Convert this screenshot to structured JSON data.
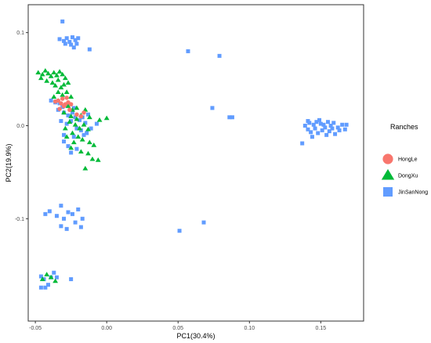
{
  "chart_data": {
    "type": "scatter",
    "xlabel": "PC1(30.4%)",
    "ylabel": "PC2(19.9%)",
    "xlim": [
      -0.055,
      0.18
    ],
    "ylim": [
      -0.21,
      0.13
    ],
    "x_ticks": [
      -0.05,
      0.0,
      0.05,
      0.1,
      0.15
    ],
    "x_tick_labels": [
      "-0.05",
      "0.00",
      "0.05",
      "0.10",
      "0.15"
    ],
    "y_ticks": [
      0.1,
      0.0,
      -0.1
    ],
    "y_tick_labels": [
      "0.1",
      "0.0",
      "-0.1"
    ],
    "grid": false,
    "legend": {
      "title": "Ranches",
      "position": "right"
    },
    "series": [
      {
        "name": "HongLe",
        "marker": "circle",
        "color": "#F8766D",
        "points": [
          [
            -0.036,
            0.026
          ],
          [
            -0.032,
            0.024
          ],
          [
            -0.029,
            0.023
          ],
          [
            -0.027,
            0.025
          ],
          [
            -0.031,
            0.029
          ],
          [
            -0.034,
            0.027
          ],
          [
            -0.028,
            0.03
          ],
          [
            -0.025,
            0.023
          ],
          [
            -0.03,
            0.021
          ],
          [
            -0.021,
            0.012
          ],
          [
            -0.018,
            0.01
          ],
          [
            -0.016,
            0.014
          ],
          [
            -0.026,
            0.017
          ],
          [
            -0.033,
            0.018
          ]
        ]
      },
      {
        "name": "DongXu",
        "marker": "triangle",
        "color": "#00BA38",
        "points": [
          [
            -0.048,
            0.057
          ],
          [
            -0.045,
            0.055
          ],
          [
            -0.043,
            0.059
          ],
          [
            -0.041,
            0.056
          ],
          [
            -0.046,
            0.051
          ],
          [
            -0.039,
            0.053
          ],
          [
            -0.037,
            0.057
          ],
          [
            -0.035,
            0.054
          ],
          [
            -0.033,
            0.058
          ],
          [
            -0.031,
            0.055
          ],
          [
            -0.042,
            0.048
          ],
          [
            -0.038,
            0.046
          ],
          [
            -0.034,
            0.049
          ],
          [
            -0.029,
            0.051
          ],
          [
            -0.036,
            0.043
          ],
          [
            -0.032,
            0.041
          ],
          [
            -0.03,
            0.044
          ],
          [
            -0.027,
            0.046
          ],
          [
            -0.034,
            0.036
          ],
          [
            -0.031,
            0.033
          ],
          [
            -0.028,
            0.036
          ],
          [
            -0.025,
            0.031
          ],
          [
            -0.037,
            0.031
          ],
          [
            -0.027,
            0.021
          ],
          [
            -0.024,
            0.017
          ],
          [
            -0.021,
            0.019
          ],
          [
            -0.03,
            0.014
          ],
          [
            -0.025,
            0.01
          ],
          [
            -0.021,
            0.007
          ],
          [
            -0.018,
            0.011
          ],
          [
            -0.015,
            0.017
          ],
          [
            -0.012,
            0.009
          ],
          [
            -0.026,
            0.004
          ],
          [
            -0.022,
            0.001
          ],
          [
            -0.019,
            -0.003
          ],
          [
            -0.016,
            0.001
          ],
          [
            -0.013,
            -0.004
          ],
          [
            -0.029,
            -0.003
          ],
          [
            -0.024,
            -0.008
          ],
          [
            -0.02,
            -0.012
          ],
          [
            -0.017,
            -0.015
          ],
          [
            -0.012,
            -0.018
          ],
          [
            -0.009,
            -0.021
          ],
          [
            -0.025,
            -0.024
          ],
          [
            -0.018,
            -0.028
          ],
          [
            -0.013,
            -0.03
          ],
          [
            -0.01,
            -0.036
          ],
          [
            -0.015,
            -0.046
          ],
          [
            -0.006,
            -0.037
          ],
          [
            0.0,
            0.008
          ],
          [
            -0.005,
            0.006
          ],
          [
            -0.028,
            -0.012
          ],
          [
            -0.023,
            -0.018
          ],
          [
            -0.045,
            -0.165
          ],
          [
            -0.042,
            -0.16
          ],
          [
            -0.039,
            -0.163
          ],
          [
            -0.036,
            -0.167
          ]
        ]
      },
      {
        "name": "JinSanNong",
        "marker": "square",
        "color": "#619CFF",
        "points": [
          [
            -0.031,
            0.112
          ],
          [
            -0.033,
            0.093
          ],
          [
            -0.03,
            0.091
          ],
          [
            -0.028,
            0.094
          ],
          [
            -0.026,
            0.09
          ],
          [
            -0.024,
            0.095
          ],
          [
            -0.022,
            0.092
          ],
          [
            -0.029,
            0.088
          ],
          [
            -0.025,
            0.087
          ],
          [
            -0.021,
            0.088
          ],
          [
            -0.02,
            0.094
          ],
          [
            -0.023,
            0.084
          ],
          [
            -0.012,
            0.082
          ],
          [
            -0.039,
            0.027
          ],
          [
            -0.036,
            0.025
          ],
          [
            -0.033,
            0.024
          ],
          [
            -0.031,
            0.02
          ],
          [
            -0.028,
            0.022
          ],
          [
            -0.034,
            0.017
          ],
          [
            -0.03,
            0.014
          ],
          [
            -0.027,
            0.011
          ],
          [
            -0.024,
            0.014
          ],
          [
            -0.022,
            0.009
          ],
          [
            -0.019,
            0.006
          ],
          [
            -0.017,
            0.009
          ],
          [
            -0.013,
            0.012
          ],
          [
            -0.015,
            0.003
          ],
          [
            -0.025,
            0.005
          ],
          [
            -0.028,
            0.002
          ],
          [
            -0.021,
            -0.003
          ],
          [
            -0.018,
            -0.005
          ],
          [
            -0.014,
            -0.008
          ],
          [
            -0.023,
            0.019
          ],
          [
            -0.032,
            0.005
          ],
          [
            -0.03,
            -0.01
          ],
          [
            -0.023,
            -0.012
          ],
          [
            -0.016,
            -0.01
          ],
          [
            -0.011,
            -0.003
          ],
          [
            -0.007,
            0.002
          ],
          [
            -0.027,
            -0.022
          ],
          [
            -0.025,
            -0.029
          ],
          [
            -0.021,
            -0.025
          ],
          [
            -0.03,
            -0.017
          ],
          [
            0.057,
            0.08
          ],
          [
            0.079,
            0.075
          ],
          [
            0.074,
            0.019
          ],
          [
            0.086,
            0.009
          ],
          [
            0.088,
            0.009
          ],
          [
            0.137,
            -0.019
          ],
          [
            0.139,
            0.0
          ],
          [
            0.141,
            -0.004
          ],
          [
            0.142,
            0.003
          ],
          [
            0.143,
            -0.007
          ],
          [
            0.145,
            0.001
          ],
          [
            0.146,
            -0.003
          ],
          [
            0.147,
            0.004
          ],
          [
            0.148,
            -0.008
          ],
          [
            0.15,
            0.002
          ],
          [
            0.151,
            -0.005
          ],
          [
            0.152,
            0.001
          ],
          [
            0.153,
            -0.002
          ],
          [
            0.155,
            0.004
          ],
          [
            0.156,
            -0.006
          ],
          [
            0.157,
            0.0
          ],
          [
            0.158,
            -0.003
          ],
          [
            0.159,
            0.003
          ],
          [
            0.16,
            -0.009
          ],
          [
            0.162,
            -0.002
          ],
          [
            0.163,
            -0.005
          ],
          [
            0.165,
            0.001
          ],
          [
            0.167,
            -0.004
          ],
          [
            0.168,
            0.001
          ],
          [
            0.144,
            -0.012
          ],
          [
            0.154,
            -0.01
          ],
          [
            0.149,
            0.006
          ],
          [
            0.141,
            0.005
          ],
          [
            -0.04,
            -0.092
          ],
          [
            -0.035,
            -0.097
          ],
          [
            -0.032,
            -0.086
          ],
          [
            -0.03,
            -0.1
          ],
          [
            -0.027,
            -0.093
          ],
          [
            -0.024,
            -0.095
          ],
          [
            -0.022,
            -0.104
          ],
          [
            -0.02,
            -0.09
          ],
          [
            -0.017,
            -0.1
          ],
          [
            -0.032,
            -0.108
          ],
          [
            -0.028,
            -0.111
          ],
          [
            -0.018,
            -0.109
          ],
          [
            -0.043,
            -0.095
          ],
          [
            0.051,
            -0.113
          ],
          [
            0.068,
            -0.104
          ],
          [
            -0.046,
            -0.162
          ],
          [
            -0.044,
            -0.165
          ],
          [
            -0.041,
            -0.171
          ],
          [
            -0.039,
            -0.163
          ],
          [
            -0.037,
            -0.158
          ],
          [
            -0.035,
            -0.163
          ],
          [
            -0.046,
            -0.174
          ],
          [
            -0.043,
            -0.174
          ],
          [
            -0.025,
            -0.165
          ]
        ]
      }
    ]
  }
}
